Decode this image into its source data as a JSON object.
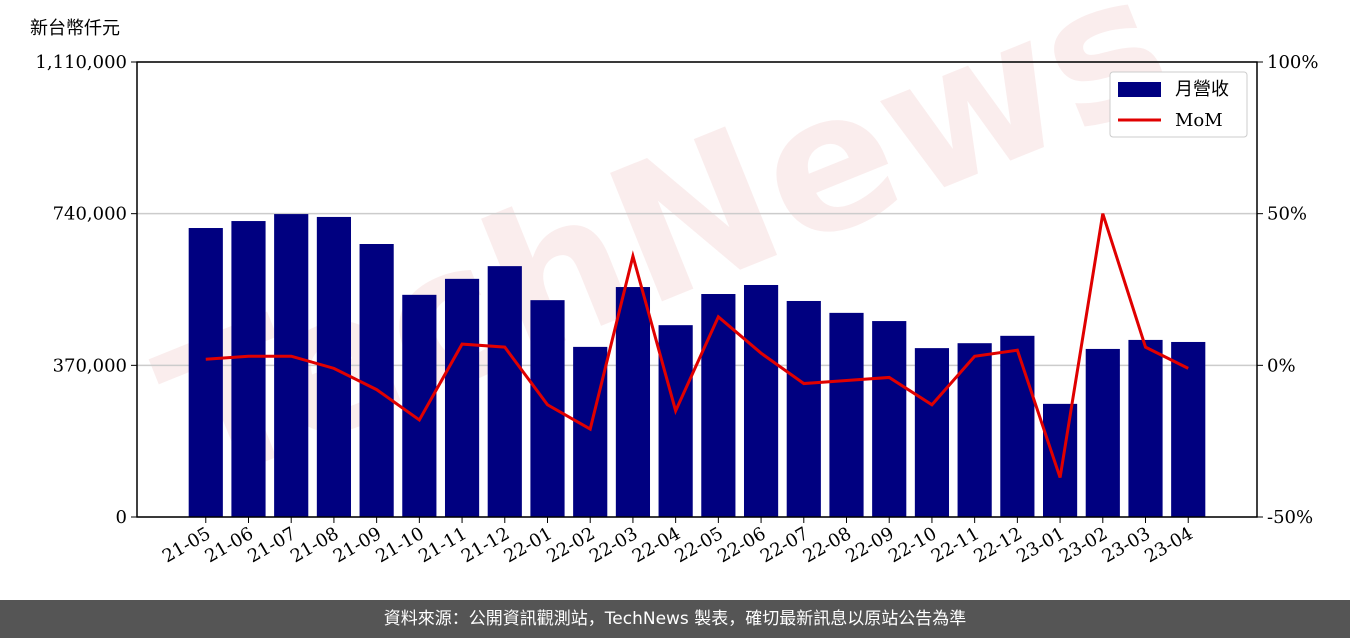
{
  "chart_data": {
    "type": "bar-line",
    "y_label": "新台幣仟元",
    "watermark": "TechNews",
    "categories": [
      "21-05",
      "21-06",
      "21-07",
      "21-08",
      "21-09",
      "21-10",
      "21-11",
      "21-12",
      "22-01",
      "22-02",
      "22-03",
      "22-04",
      "22-05",
      "22-06",
      "22-07",
      "22-08",
      "22-09",
      "22-10",
      "22-11",
      "22-12",
      "23-01",
      "23-02",
      "23-03",
      "23-04"
    ],
    "series": [
      {
        "name": "月營收",
        "type": "bar",
        "color": "#000080",
        "axis": "y",
        "values": [
          705000,
          722000,
          739000,
          732000,
          666000,
          542000,
          581000,
          612000,
          529000,
          415000,
          561000,
          468000,
          544000,
          566000,
          527000,
          498000,
          478000,
          412000,
          424000,
          442000,
          276000,
          410000,
          432000,
          427000
        ]
      },
      {
        "name": "MoM",
        "type": "line",
        "color": "#e00000",
        "axis": "y2",
        "values": [
          2,
          3,
          3,
          -1,
          -8,
          -18,
          7,
          6,
          -13,
          -21,
          36,
          -15,
          16,
          4,
          -6,
          -5,
          -4,
          -13,
          3,
          5,
          -37,
          50,
          6,
          -1
        ]
      }
    ],
    "ylim": [
      0,
      1110000
    ],
    "yticks": [
      0,
      {
        "value": 370000,
        "label": "370,000"
      },
      {
        "value": 740000,
        "label": "740,000"
      },
      {
        "value": 1110000,
        "label": "1,110,000"
      }
    ],
    "y2lim": [
      -50,
      100
    ],
    "y2ticks": [
      {
        "value": -50,
        "label": "-50%"
      },
      {
        "value": 0,
        "label": "0%"
      },
      {
        "value": 50,
        "label": "50%"
      },
      {
        "value": 100,
        "label": "100%"
      }
    ],
    "grid": true,
    "legend": "upper right"
  },
  "footer": "資料來源：公開資訊觀測站，TechNews 製表，確切最新訊息以原站公告為準"
}
